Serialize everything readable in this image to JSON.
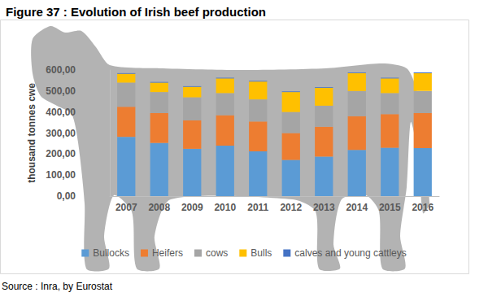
{
  "chart_data": {
    "type": "bar",
    "title": "Figure 37 : Evolution of Irish beef production",
    "annotations": [
      "Source : Inra, by Eurostat"
    ],
    "y_label": "thousand tonnes cwe",
    "categories": [
      "2007",
      "2008",
      "2009",
      "2010",
      "2011",
      "2012",
      "2013",
      "2014",
      "2015",
      "2016"
    ],
    "series": [
      {
        "name": "Bullocks",
        "color": "#5b9bd5",
        "values": [
          282,
          253,
          225,
          240,
          213,
          172,
          188,
          220,
          230,
          228
        ]
      },
      {
        "name": "Heifers",
        "color": "#ed7d31",
        "values": [
          143,
          142,
          135,
          145,
          142,
          128,
          142,
          160,
          160,
          167
        ]
      },
      {
        "name": "cows",
        "color": "#a5a5a5",
        "values": [
          115,
          100,
          110,
          105,
          105,
          100,
          100,
          120,
          100,
          105
        ]
      },
      {
        "name": "Bulls",
        "color": "#ffc000",
        "values": [
          42,
          45,
          50,
          70,
          85,
          95,
          85,
          85,
          70,
          85
        ]
      },
      {
        "name": "calves and young cattleys",
        "color": "#4472c4",
        "values": [
          3,
          3,
          3,
          3,
          3,
          3,
          3,
          3,
          3,
          3
        ]
      }
    ],
    "ylim": [
      0,
      600
    ],
    "yticks": [
      {
        "value": 0,
        "label": "0,00"
      },
      {
        "value": 100,
        "label": "100,00"
      },
      {
        "value": 200,
        "label": "200,00"
      },
      {
        "value": 300,
        "label": "300,00"
      },
      {
        "value": 400,
        "label": "400,00"
      },
      {
        "value": 500,
        "label": "500,00"
      },
      {
        "value": 600,
        "label": "600,00"
      }
    ],
    "stacked": true,
    "grid": false,
    "legend": "bottom"
  }
}
